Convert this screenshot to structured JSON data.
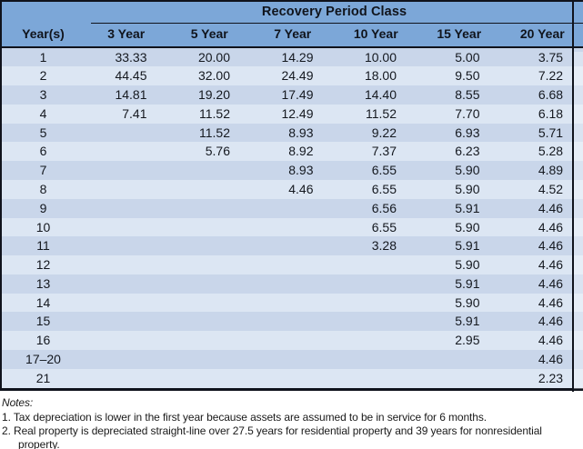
{
  "table": {
    "title": "Recovery Period Class",
    "row_header_label": "Year(s)",
    "column_headers": [
      "3 Year",
      "5 Year",
      "7 Year",
      "10 Year",
      "15 Year",
      "20 Year"
    ],
    "rows": [
      {
        "year": "1",
        "values": [
          "33.33",
          "20.00",
          "14.29",
          "10.00",
          "5.00",
          "3.75"
        ]
      },
      {
        "year": "2",
        "values": [
          "44.45",
          "32.00",
          "24.49",
          "18.00",
          "9.50",
          "7.22"
        ]
      },
      {
        "year": "3",
        "values": [
          "14.81",
          "19.20",
          "17.49",
          "14.40",
          "8.55",
          "6.68"
        ]
      },
      {
        "year": "4",
        "values": [
          "7.41",
          "11.52",
          "12.49",
          "11.52",
          "7.70",
          "6.18"
        ]
      },
      {
        "year": "5",
        "values": [
          "",
          "11.52",
          "8.93",
          "9.22",
          "6.93",
          "5.71"
        ]
      },
      {
        "year": "6",
        "values": [
          "",
          "5.76",
          "8.92",
          "7.37",
          "6.23",
          "5.28"
        ]
      },
      {
        "year": "7",
        "values": [
          "",
          "",
          "8.93",
          "6.55",
          "5.90",
          "4.89"
        ]
      },
      {
        "year": "8",
        "values": [
          "",
          "",
          "4.46",
          "6.55",
          "5.90",
          "4.52"
        ]
      },
      {
        "year": "9",
        "values": [
          "",
          "",
          "",
          "6.56",
          "5.91",
          "4.46"
        ]
      },
      {
        "year": "10",
        "values": [
          "",
          "",
          "",
          "6.55",
          "5.90",
          "4.46"
        ]
      },
      {
        "year": "11",
        "values": [
          "",
          "",
          "",
          "3.28",
          "5.91",
          "4.46"
        ]
      },
      {
        "year": "12",
        "values": [
          "",
          "",
          "",
          "",
          "5.90",
          "4.46"
        ]
      },
      {
        "year": "13",
        "values": [
          "",
          "",
          "",
          "",
          "5.91",
          "4.46"
        ]
      },
      {
        "year": "14",
        "values": [
          "",
          "",
          "",
          "",
          "5.90",
          "4.46"
        ]
      },
      {
        "year": "15",
        "values": [
          "",
          "",
          "",
          "",
          "5.91",
          "4.46"
        ]
      },
      {
        "year": "16",
        "values": [
          "",
          "",
          "",
          "",
          "2.95",
          "4.46"
        ]
      },
      {
        "year": "17–20",
        "values": [
          "",
          "",
          "",
          "",
          "",
          "4.46"
        ]
      },
      {
        "year": "21",
        "values": [
          "",
          "",
          "",
          "",
          "",
          "2.23"
        ]
      }
    ]
  },
  "notes": {
    "label": "Notes:",
    "items": [
      "1. Tax depreciation is lower in the first year because assets are assumed to be in service for 6 months.",
      "2. Real property is depreciated straight-line over 27.5 years for residential property and 39 years for nonresidential property."
    ]
  },
  "colors": {
    "header_blue": "#7ca7d8",
    "row_stripe_dark": "#c9d6ea",
    "row_stripe_light": "#dce6f3",
    "border_black": "#10131c"
  }
}
